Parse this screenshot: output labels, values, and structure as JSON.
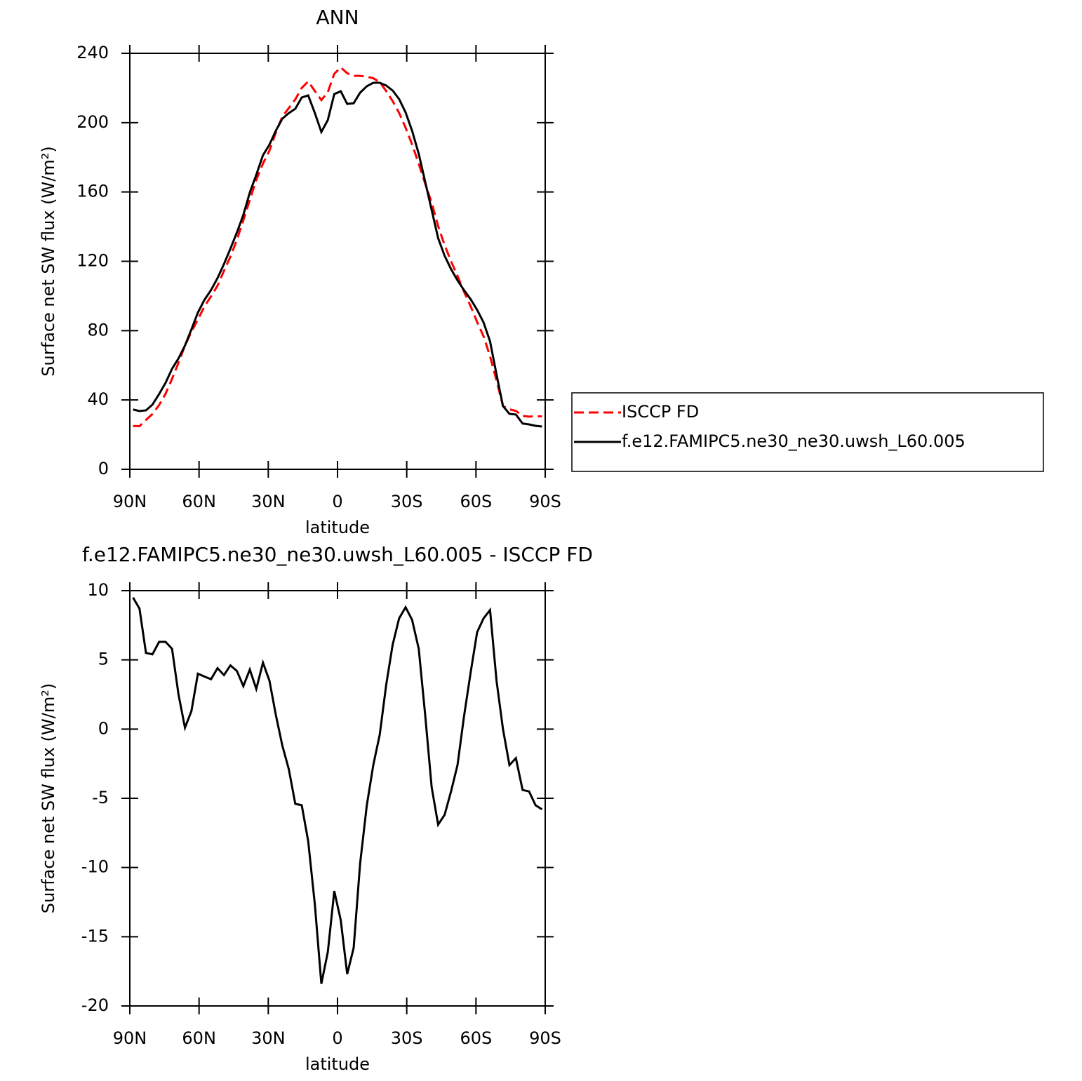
{
  "chart_data": [
    {
      "type": "line",
      "title": "ANN",
      "xlabel": "latitude",
      "ylabel": "Surface net SW flux (W/m²)",
      "x": [
        88.6,
        85.8,
        83.0,
        80.2,
        77.3,
        74.5,
        71.7,
        68.9,
        66.1,
        63.3,
        60.5,
        57.7,
        54.8,
        52.0,
        49.2,
        46.4,
        43.6,
        40.8,
        38.0,
        35.2,
        32.3,
        29.5,
        26.7,
        23.9,
        21.1,
        18.3,
        15.5,
        12.7,
        9.8,
        7.0,
        4.2,
        1.4,
        -1.4,
        -4.2,
        -7.0,
        -9.8,
        -12.7,
        -15.5,
        -18.3,
        -21.1,
        -23.9,
        -26.7,
        -29.5,
        -32.3,
        -35.2,
        -38.0,
        -40.8,
        -43.6,
        -46.4,
        -49.2,
        -52.0,
        -54.8,
        -57.7,
        -60.5,
        -63.3,
        -66.1,
        -68.9,
        -71.7,
        -74.5,
        -77.3,
        -80.2,
        -83.0,
        -85.8,
        -88.6
      ],
      "series": [
        {
          "name": "ISCCP FD",
          "color": "#ff0000",
          "dashed": true,
          "values": [
            25.0,
            24.9,
            28.5,
            31.9,
            37.1,
            43.6,
            52.2,
            61.5,
            71.3,
            79.4,
            86.4,
            93.9,
            99.8,
            105.9,
            114.5,
            122.7,
            132.4,
            143.7,
            155.4,
            167.0,
            176.4,
            183.8,
            194.4,
            203.5,
            208.4,
            213.4,
            220.0,
            223.8,
            218.2,
            213.0,
            217.6,
            228.2,
            231.9,
            228.5,
            227.0,
            227.0,
            226.5,
            225.6,
            223.4,
            218.2,
            212.4,
            205.6,
            197.1,
            187.5,
            176.2,
            164.8,
            153.8,
            140.3,
            129.4,
            120.0,
            111.6,
            102.5,
            94.0,
            85.0,
            76.7,
            65.2,
            51.2,
            36.5,
            34.6,
            33.7,
            30.8,
            30.4,
            30.6,
            30.5
          ]
        },
        {
          "name": "f.e12.FAMIPC5.ne30_ne30.uwsh_L60.005",
          "color": "#000000",
          "dashed": false,
          "values": [
            34.5,
            33.6,
            34.0,
            37.3,
            43.4,
            49.9,
            58.0,
            64.0,
            71.4,
            80.7,
            90.4,
            97.7,
            103.4,
            110.3,
            118.4,
            127.3,
            136.6,
            146.8,
            159.7,
            169.9,
            181.2,
            187.3,
            195.4,
            202.3,
            205.5,
            208.0,
            214.5,
            215.7,
            205.5,
            194.6,
            201.5,
            216.5,
            218.1,
            210.8,
            211.2,
            217.3,
            221.0,
            223.0,
            223.0,
            221.4,
            218.5,
            213.6,
            205.9,
            195.4,
            182.0,
            165.8,
            149.6,
            133.4,
            123.2,
            115.5,
            109.0,
            103.4,
            98.1,
            92.0,
            84.7,
            73.8,
            54.7,
            36.5,
            32.0,
            31.6,
            26.4,
            25.9,
            25.1,
            24.7
          ]
        }
      ],
      "xlim": [
        90,
        -90
      ],
      "xticks": [
        {
          "value": 90,
          "label": "90N"
        },
        {
          "value": 60,
          "label": "60N"
        },
        {
          "value": 30,
          "label": "30N"
        },
        0,
        {
          "value": -30,
          "label": "30S"
        },
        {
          "value": -60,
          "label": "60S"
        },
        {
          "value": -90,
          "label": "90S"
        }
      ],
      "ylim": [
        0,
        240
      ],
      "yticks": [
        0,
        40,
        80,
        120,
        160,
        200,
        240
      ],
      "legend": "right"
    },
    {
      "type": "line",
      "title": "f.e12.FAMIPC5.ne30_ne30.uwsh_L60.005 - ISCCP FD",
      "xlabel": "latitude",
      "ylabel": "Surface net SW flux (W/m²)",
      "x": [
        88.6,
        85.8,
        83.0,
        80.2,
        77.3,
        74.5,
        71.7,
        68.9,
        66.1,
        63.3,
        60.5,
        57.7,
        54.8,
        52.0,
        49.2,
        46.4,
        43.6,
        40.8,
        38.0,
        35.2,
        32.3,
        29.5,
        26.7,
        23.9,
        21.1,
        18.3,
        15.5,
        12.7,
        9.8,
        7.0,
        4.2,
        1.4,
        -1.4,
        -4.2,
        -7.0,
        -9.8,
        -12.7,
        -15.5,
        -18.3,
        -21.1,
        -23.9,
        -26.7,
        -29.5,
        -32.3,
        -35.2,
        -38.0,
        -40.8,
        -43.6,
        -46.4,
        -49.2,
        -52.0,
        -54.8,
        -57.7,
        -60.5,
        -63.3,
        -66.1,
        -68.9,
        -71.7,
        -74.5,
        -77.3,
        -80.2,
        -83.0,
        -85.8,
        -88.6
      ],
      "color": "#000000",
      "values": [
        9.5,
        8.7,
        5.5,
        5.4,
        6.3,
        6.3,
        5.8,
        2.5,
        0.1,
        1.3,
        4.0,
        3.8,
        3.6,
        4.4,
        3.9,
        4.6,
        4.2,
        3.1,
        4.3,
        2.9,
        4.8,
        3.5,
        1.0,
        -1.2,
        -2.9,
        -5.4,
        -5.5,
        -8.1,
        -12.7,
        -18.4,
        -16.1,
        -11.7,
        -13.8,
        -17.7,
        -15.8,
        -9.7,
        -5.5,
        -2.6,
        -0.4,
        3.2,
        6.1,
        8.0,
        8.8,
        7.9,
        5.8,
        1.0,
        -4.2,
        -6.9,
        -6.2,
        -4.5,
        -2.6,
        0.9,
        4.1,
        7.0,
        8.0,
        8.6,
        3.5,
        0.0,
        -2.6,
        -2.1,
        -4.4,
        -4.5,
        -5.5,
        -5.8
      ],
      "xlim": [
        90,
        -90
      ],
      "xticks": [
        {
          "value": 90,
          "label": "90N"
        },
        {
          "value": 60,
          "label": "60N"
        },
        {
          "value": 30,
          "label": "30N"
        },
        0,
        {
          "value": -30,
          "label": "30S"
        },
        {
          "value": -60,
          "label": "60S"
        },
        {
          "value": -90,
          "label": "90S"
        }
      ],
      "ylim": [
        -20,
        10
      ],
      "yticks": [
        -20,
        -15,
        -10,
        -5,
        0,
        5,
        10
      ]
    }
  ]
}
